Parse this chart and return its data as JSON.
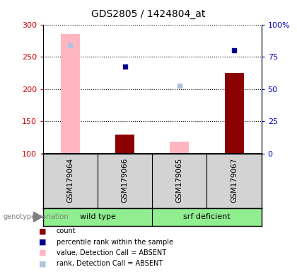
{
  "title": "GDS2805 / 1424804_at",
  "samples": [
    "GSM179064",
    "GSM179066",
    "GSM179065",
    "GSM179067"
  ],
  "group_labels": [
    "wild type",
    "srf deficient"
  ],
  "ylim_left": [
    100,
    300
  ],
  "ylim_right": [
    0,
    100
  ],
  "yticks_left": [
    100,
    150,
    200,
    250,
    300
  ],
  "yticks_right": [
    0,
    25,
    50,
    75,
    100
  ],
  "ytick_labels_left": [
    "100",
    "150",
    "200",
    "250",
    "300"
  ],
  "ytick_labels_right": [
    "0",
    "25",
    "50",
    "75",
    "100%"
  ],
  "bar_values": [
    285,
    130,
    119,
    225
  ],
  "bar_absent": [
    true,
    false,
    true,
    false
  ],
  "bar_color_present": "#8b0000",
  "bar_color_absent": "#ffb6c1",
  "rank_values": [
    268,
    235,
    205,
    260
  ],
  "rank_absent": [
    true,
    false,
    true,
    false
  ],
  "rank_color_present": "#00008b",
  "rank_color_absent": "#b0c4de",
  "left_axis_color": "#cc0000",
  "right_axis_color": "#0000cc",
  "bar_width": 0.35,
  "label_area_color": "#d3d3d3",
  "group_area_color": "#90ee90",
  "legend_items": [
    {
      "label": "count",
      "color": "#8b0000"
    },
    {
      "label": "percentile rank within the sample",
      "color": "#00008b"
    },
    {
      "label": "value, Detection Call = ABSENT",
      "color": "#ffb6c1"
    },
    {
      "label": "rank, Detection Call = ABSENT",
      "color": "#b0c4de"
    }
  ]
}
